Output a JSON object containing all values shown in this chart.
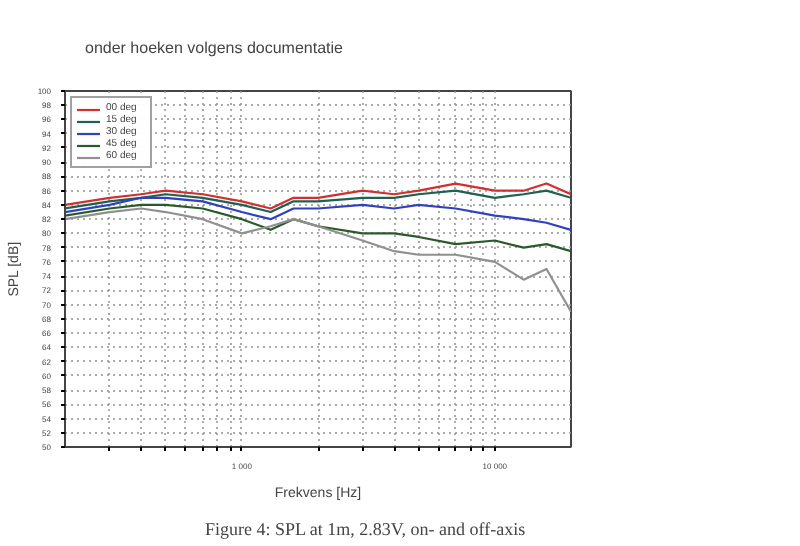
{
  "chart_data": {
    "type": "line",
    "title": "onder hoeken volgens documentatie",
    "xlabel": "Frekvens [Hz]",
    "ylabel": "SPL [dB]",
    "annotations": [
      "Figure 4: SPL at 1m, 2.83V, on- and off-axis"
    ],
    "log": "x",
    "grid": true,
    "legend": "top left",
    "line_style": "solid",
    "xlim": [
      200,
      20000
    ],
    "ylim": [
      50,
      100
    ],
    "xticks": [
      {
        "value": 300,
        "label": null
      },
      {
        "value": 400,
        "label": null
      },
      {
        "value": 500,
        "label": null
      },
      {
        "value": 600,
        "label": null
      },
      {
        "value": 700,
        "label": null
      },
      {
        "value": 800,
        "label": null
      },
      {
        "value": 900,
        "label": null
      },
      {
        "value": 1000,
        "label": "1 000"
      },
      {
        "value": 2000,
        "label": null
      },
      {
        "value": 3000,
        "label": null
      },
      {
        "value": 4000,
        "label": null
      },
      {
        "value": 5000,
        "label": null
      },
      {
        "value": 6000,
        "label": null
      },
      {
        "value": 7000,
        "label": null
      },
      {
        "value": 8000,
        "label": null
      },
      {
        "value": 9000,
        "label": null
      },
      {
        "value": 10000,
        "label": "10 000"
      }
    ],
    "yticks": [
      50,
      52,
      54,
      56,
      58,
      60,
      62,
      64,
      66,
      68,
      70,
      72,
      74,
      76,
      78,
      80,
      82,
      84,
      86,
      88,
      90,
      92,
      94,
      96,
      98,
      100
    ],
    "x": [
      200,
      300,
      400,
      500,
      700,
      1000,
      1300,
      1600,
      2000,
      3000,
      4000,
      5000,
      7000,
      10000,
      13000,
      16000,
      20000
    ],
    "series": [
      {
        "name": "00 deg",
        "color": "#d03030",
        "values": [
          84,
          85,
          85.5,
          86,
          85.5,
          84.5,
          83.5,
          85,
          85,
          86,
          85.5,
          86,
          87,
          86,
          86,
          87,
          85.5
        ]
      },
      {
        "name": "15 deg",
        "color": "#206050",
        "values": [
          83.5,
          84.5,
          85,
          85.5,
          85,
          84,
          83,
          84.5,
          84.5,
          85,
          85,
          85.5,
          86,
          85,
          85.5,
          86,
          85
        ]
      },
      {
        "name": "30 deg",
        "color": "#3040c0",
        "values": [
          83,
          84,
          85,
          85,
          84.5,
          83,
          82,
          83.5,
          83.5,
          84,
          83.5,
          84,
          83.5,
          82.5,
          82,
          81.5,
          80.5
        ]
      },
      {
        "name": "45 deg",
        "color": "#2a5a2a",
        "values": [
          82.5,
          83.5,
          84,
          84,
          83.5,
          82,
          80.5,
          82,
          81,
          80,
          80,
          79.5,
          78.5,
          79,
          78,
          78.5,
          77.5
        ]
      },
      {
        "name": "60 deg",
        "color": "#909090",
        "values": [
          82,
          83,
          83.5,
          83,
          82,
          80,
          81,
          82,
          81,
          79,
          77.5,
          77,
          77,
          76,
          73.5,
          75,
          69
        ]
      }
    ]
  }
}
